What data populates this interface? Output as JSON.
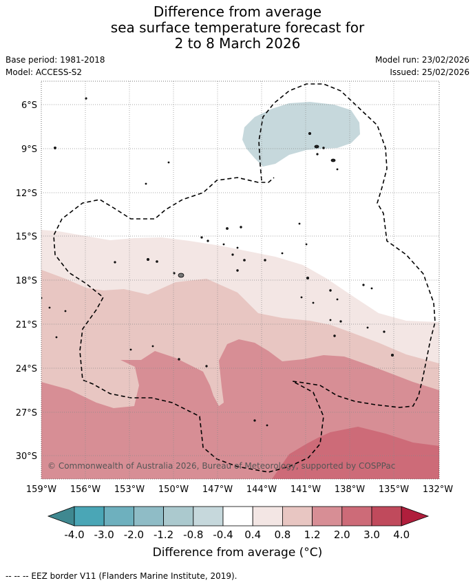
{
  "title": {
    "line1": "Difference from average",
    "line2": "sea surface temperature forecast for",
    "line3": "2 to 8 March 2026"
  },
  "meta": {
    "base_period": "Base period: 1981-2018",
    "model": "Model: ACCESS-S2",
    "model_run": "Model run: 23/02/2026",
    "issued": "Issued: 25/02/2026"
  },
  "map": {
    "lat_labels": [
      "6°S",
      "9°S",
      "12°S",
      "15°S",
      "18°S",
      "21°S",
      "24°S",
      "27°S",
      "30°S"
    ],
    "lon_labels": [
      "159°W",
      "156°W",
      "153°W",
      "150°W",
      "147°W",
      "144°W",
      "141°W",
      "138°W",
      "135°W",
      "132°W"
    ],
    "copyright": "© Commonwealth of Australia 2026, Bureau of Meteorology, supported by COSPPac"
  },
  "colorbar": {
    "labels": [
      "-4.0",
      "-3.0",
      "-2.0",
      "-1.2",
      "-0.8",
      "-0.4",
      "0.4",
      "0.8",
      "1.2",
      "2.0",
      "3.0",
      "4.0"
    ],
    "colors": [
      "#3f8890",
      "#4aa6b6",
      "#6eb0be",
      "#8fbcc6",
      "#abc9ce",
      "#c6d8dc",
      "#ffffff",
      "#f3e6e4",
      "#e8c6c2",
      "#d78e95",
      "#cd6b78",
      "#c04a5c",
      "#b01e3c"
    ],
    "title": "Difference from average (°C)"
  },
  "footer": "--  --  -- EEZ border V11 (Flanders Marine Institute, 2019)."
}
